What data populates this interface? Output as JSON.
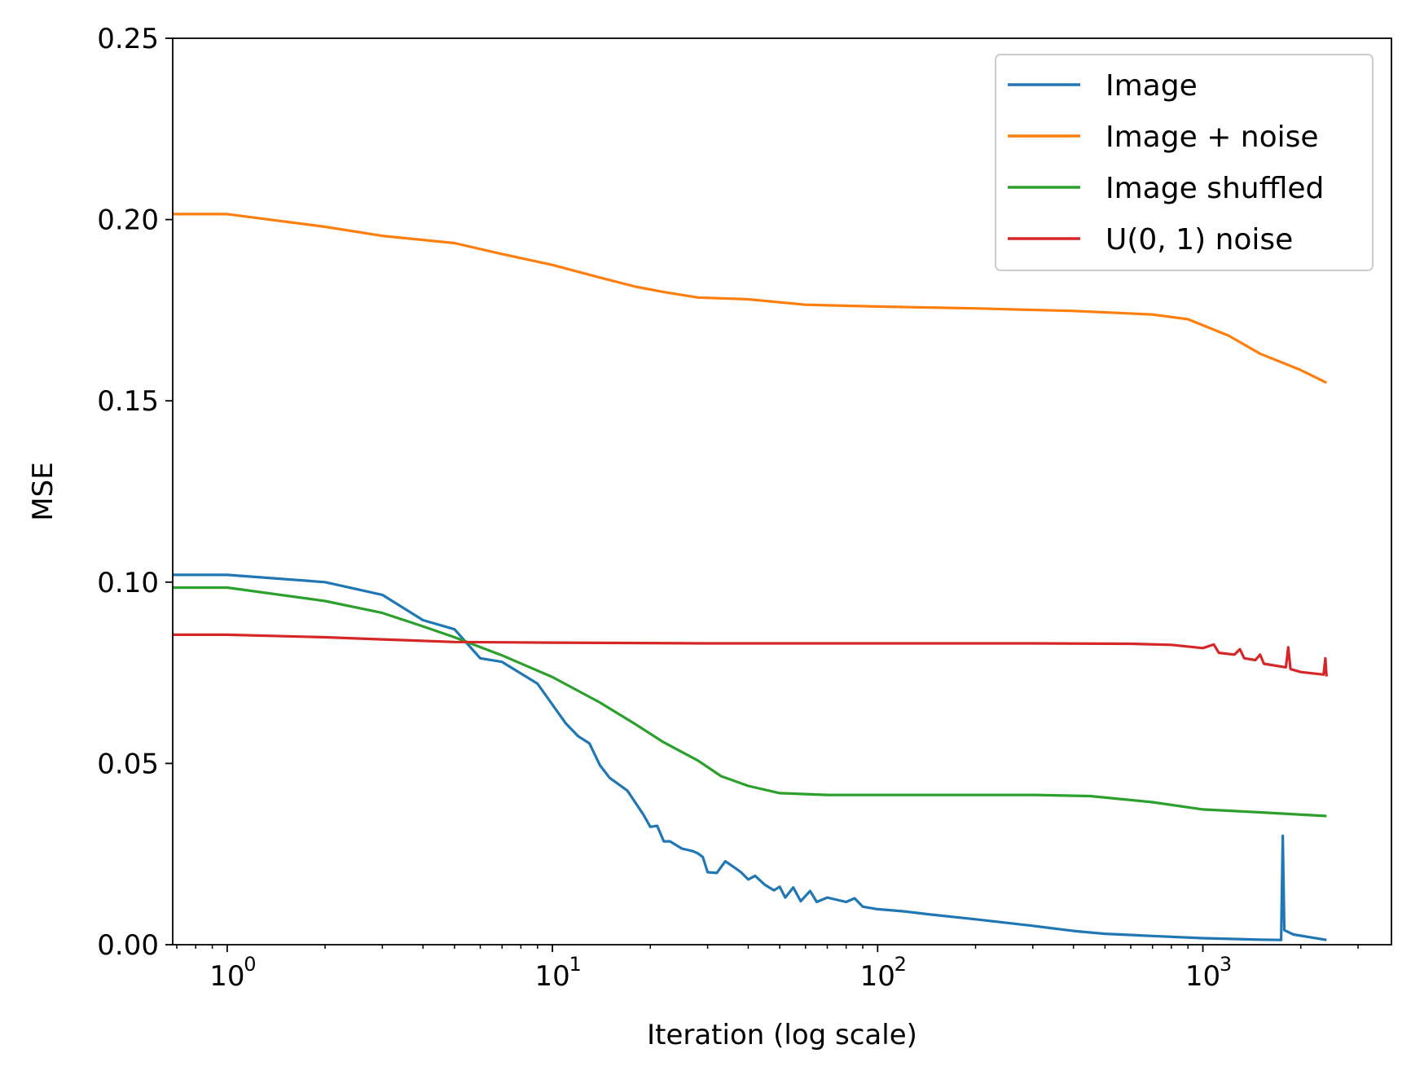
{
  "chart_data": {
    "type": "line",
    "title": "",
    "xlabel": "Iteration (log scale)",
    "ylabel": "MSE",
    "xscale": "log",
    "xlim": [
      0.68,
      3800
    ],
    "ylim": [
      0.0,
      0.25
    ],
    "grid": false,
    "legend_position": "top-right",
    "x_ticks": [
      {
        "value": 1,
        "base": "10",
        "exp": "0"
      },
      {
        "value": 10,
        "base": "10",
        "exp": "1"
      },
      {
        "value": 100,
        "base": "10",
        "exp": "2"
      },
      {
        "value": 1000,
        "base": "10",
        "exp": "3"
      }
    ],
    "y_ticks": [
      {
        "value": 0.0,
        "label": "0.00"
      },
      {
        "value": 0.05,
        "label": "0.05"
      },
      {
        "value": 0.1,
        "label": "0.10"
      },
      {
        "value": 0.15,
        "label": "0.15"
      },
      {
        "value": 0.2,
        "label": "0.20"
      },
      {
        "value": 0.25,
        "label": "0.25"
      }
    ],
    "series": [
      {
        "name": "Image",
        "color": "#1f77b4",
        "points": [
          [
            0.68,
            0.102
          ],
          [
            1,
            0.102
          ],
          [
            2,
            0.1
          ],
          [
            3,
            0.0965
          ],
          [
            4,
            0.0895
          ],
          [
            5,
            0.087
          ],
          [
            6,
            0.079
          ],
          [
            7,
            0.078
          ],
          [
            9,
            0.072
          ],
          [
            11,
            0.061
          ],
          [
            12,
            0.0575
          ],
          [
            13,
            0.0555
          ],
          [
            14,
            0.0495
          ],
          [
            15,
            0.046
          ],
          [
            17,
            0.0425
          ],
          [
            19,
            0.036
          ],
          [
            20,
            0.0325
          ],
          [
            21,
            0.0328
          ],
          [
            22,
            0.0285
          ],
          [
            23,
            0.0285
          ],
          [
            25,
            0.0265
          ],
          [
            27,
            0.0258
          ],
          [
            28,
            0.0252
          ],
          [
            29,
            0.0242
          ],
          [
            30,
            0.02
          ],
          [
            32,
            0.0198
          ],
          [
            34,
            0.023
          ],
          [
            36,
            0.0215
          ],
          [
            38,
            0.02
          ],
          [
            40,
            0.018
          ],
          [
            42,
            0.019
          ],
          [
            45,
            0.0165
          ],
          [
            48,
            0.015
          ],
          [
            50,
            0.016
          ],
          [
            52,
            0.013
          ],
          [
            55,
            0.0158
          ],
          [
            58,
            0.012
          ],
          [
            62,
            0.0148
          ],
          [
            65,
            0.0118
          ],
          [
            70,
            0.013
          ],
          [
            80,
            0.0118
          ],
          [
            85,
            0.0128
          ],
          [
            90,
            0.0105
          ],
          [
            100,
            0.0098
          ],
          [
            120,
            0.0092
          ],
          [
            150,
            0.0082
          ],
          [
            200,
            0.007
          ],
          [
            300,
            0.0052
          ],
          [
            400,
            0.0038
          ],
          [
            500,
            0.003
          ],
          [
            700,
            0.0024
          ],
          [
            1000,
            0.0018
          ],
          [
            1500,
            0.0014
          ],
          [
            1740,
            0.0013
          ],
          [
            1760,
            0.03
          ],
          [
            1780,
            0.004
          ],
          [
            1900,
            0.0028
          ],
          [
            2400,
            0.0013
          ]
        ]
      },
      {
        "name": "Image + noise",
        "color": "#ff7f0e",
        "points": [
          [
            0.68,
            0.2015
          ],
          [
            1,
            0.2015
          ],
          [
            2,
            0.198
          ],
          [
            3,
            0.1955
          ],
          [
            5,
            0.1935
          ],
          [
            7,
            0.1905
          ],
          [
            10,
            0.1875
          ],
          [
            14,
            0.184
          ],
          [
            18,
            0.1815
          ],
          [
            22,
            0.18
          ],
          [
            28,
            0.1785
          ],
          [
            40,
            0.178
          ],
          [
            60,
            0.1765
          ],
          [
            100,
            0.176
          ],
          [
            200,
            0.1755
          ],
          [
            400,
            0.1748
          ],
          [
            700,
            0.1738
          ],
          [
            900,
            0.1725
          ],
          [
            1200,
            0.168
          ],
          [
            1500,
            0.163
          ],
          [
            2000,
            0.1585
          ],
          [
            2400,
            0.155
          ]
        ]
      },
      {
        "name": "Image shuffled",
        "color": "#2ca02c",
        "points": [
          [
            0.68,
            0.0985
          ],
          [
            1,
            0.0985
          ],
          [
            2,
            0.0948
          ],
          [
            3,
            0.0915
          ],
          [
            4,
            0.0878
          ],
          [
            5,
            0.0848
          ],
          [
            7,
            0.0798
          ],
          [
            10,
            0.0738
          ],
          [
            14,
            0.0668
          ],
          [
            18,
            0.0608
          ],
          [
            22,
            0.0558
          ],
          [
            28,
            0.0508
          ],
          [
            33,
            0.0465
          ],
          [
            40,
            0.0438
          ],
          [
            50,
            0.0418
          ],
          [
            70,
            0.0413
          ],
          [
            150,
            0.0413
          ],
          [
            300,
            0.0413
          ],
          [
            450,
            0.041
          ],
          [
            700,
            0.0393
          ],
          [
            1000,
            0.0373
          ],
          [
            1500,
            0.0365
          ],
          [
            2400,
            0.0355
          ]
        ]
      },
      {
        "name": "U(0, 1) noise",
        "color": "#d62728",
        "points": [
          [
            0.68,
            0.0855
          ],
          [
            1,
            0.0855
          ],
          [
            2,
            0.0848
          ],
          [
            3,
            0.0842
          ],
          [
            5,
            0.0835
          ],
          [
            10,
            0.0833
          ],
          [
            30,
            0.0831
          ],
          [
            100,
            0.0831
          ],
          [
            300,
            0.0831
          ],
          [
            600,
            0.083
          ],
          [
            800,
            0.0827
          ],
          [
            1000,
            0.0818
          ],
          [
            1080,
            0.0828
          ],
          [
            1120,
            0.0805
          ],
          [
            1250,
            0.08
          ],
          [
            1300,
            0.0815
          ],
          [
            1340,
            0.079
          ],
          [
            1450,
            0.0785
          ],
          [
            1500,
            0.08
          ],
          [
            1540,
            0.0775
          ],
          [
            1800,
            0.0765
          ],
          [
            1830,
            0.082
          ],
          [
            1860,
            0.076
          ],
          [
            2000,
            0.0752
          ],
          [
            2350,
            0.0745
          ],
          [
            2380,
            0.079
          ],
          [
            2400,
            0.074
          ]
        ]
      }
    ]
  }
}
